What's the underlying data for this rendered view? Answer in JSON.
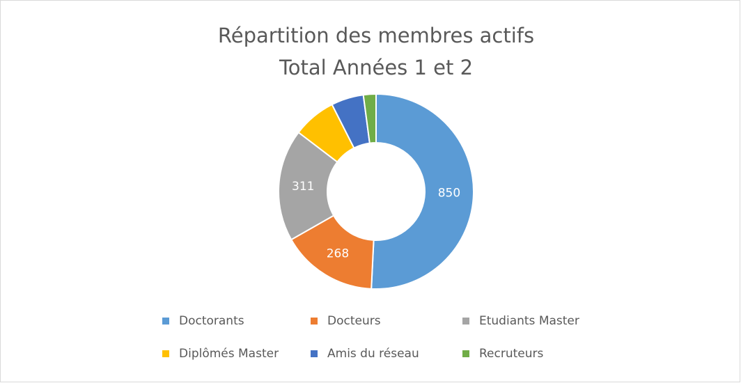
{
  "chart_data": {
    "type": "donut",
    "title": "Répartition des membres actifs",
    "subtitle": "Total Années 1 et 2",
    "categories": [
      "Doctorants",
      "Docteurs",
      "Etudiants Master",
      "Diplômés Master",
      "Amis du réseau",
      "Recruteurs"
    ],
    "values": [
      850,
      268,
      311,
      120,
      90,
      35
    ],
    "colors": [
      "#5b9bd5",
      "#ed7d31",
      "#a5a5a5",
      "#ffc000",
      "#4472c4",
      "#70ad47"
    ],
    "legend": "bottom"
  }
}
